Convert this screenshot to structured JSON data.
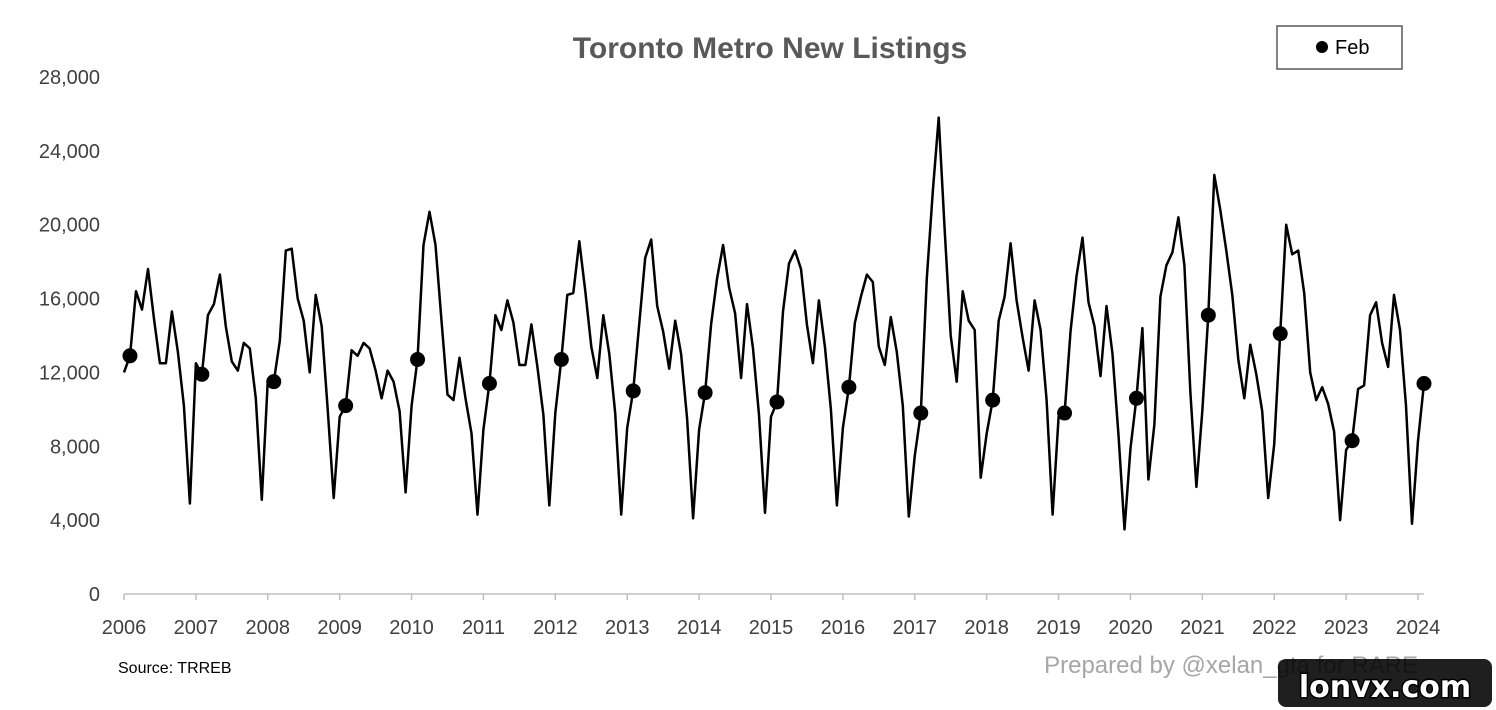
{
  "chart_data": {
    "type": "line",
    "title": "Toronto Metro New Listings",
    "xlabel": "",
    "ylabel": "",
    "ylim": [
      0,
      28000
    ],
    "yticks": [
      0,
      4000,
      8000,
      12000,
      16000,
      20000,
      24000,
      28000
    ],
    "ytick_labels": [
      "0",
      "4,000",
      "8,000",
      "12,000",
      "16,000",
      "20,000",
      "24,000",
      "28,000"
    ],
    "xlim": [
      "2006-01",
      "2024-02"
    ],
    "xtick_labels": [
      "2006",
      "2007",
      "2008",
      "2009",
      "2010",
      "2011",
      "2012",
      "2013",
      "2014",
      "2015",
      "2016",
      "2017",
      "2018",
      "2019",
      "2020",
      "2021",
      "2022",
      "2023",
      "2024"
    ],
    "grid": false,
    "legend": {
      "position": "top-right",
      "entries": [
        {
          "label": "Feb",
          "marker": "circle"
        }
      ]
    },
    "series": [
      {
        "type": "line",
        "color": "#000000",
        "start": "2006-01",
        "frequency": "monthly",
        "values": [
          12000,
          12900,
          16400,
          15400,
          17600,
          14900,
          12500,
          12500,
          15300,
          13100,
          10200,
          4900,
          12500,
          11900,
          15100,
          15700,
          17300,
          14500,
          12600,
          12100,
          13600,
          13300,
          10600,
          5100,
          11600,
          11500,
          13700,
          18600,
          18700,
          16000,
          14800,
          12000,
          16200,
          14500,
          10000,
          5200,
          9600,
          10200,
          13200,
          12900,
          13600,
          13300,
          12100,
          10600,
          12100,
          11500,
          9900,
          5500,
          10200,
          12700,
          18900,
          20700,
          18900,
          14800,
          10800,
          10500,
          12800,
          10600,
          8700,
          4300,
          8900,
          11400,
          15100,
          14300,
          15900,
          14700,
          12400,
          12400,
          14600,
          12300,
          9700,
          4800,
          9800,
          12700,
          16200,
          16300,
          19100,
          16400,
          13400,
          11700,
          15100,
          13000,
          9800,
          4300,
          9000,
          11000,
          14600,
          18200,
          19200,
          15600,
          14200,
          12200,
          14800,
          13000,
          9500,
          4100,
          8900,
          10900,
          14600,
          17100,
          18900,
          16600,
          15200,
          11700,
          15700,
          13300,
          9700,
          4400,
          9600,
          10400,
          15300,
          17900,
          18600,
          17600,
          14600,
          12500,
          15900,
          13400,
          10000,
          4800,
          9000,
          11200,
          14700,
          16100,
          17300,
          16900,
          13400,
          12400,
          15000,
          13100,
          10200,
          4200,
          7500,
          9800,
          17100,
          21800,
          25800,
          19700,
          14000,
          11500,
          16400,
          14800,
          14300,
          6300,
          8700,
          10500,
          14800,
          16100,
          19000,
          15900,
          13900,
          12100,
          15900,
          14300,
          10500,
          4300,
          9600,
          9800,
          14200,
          17200,
          19300,
          15800,
          14500,
          11800,
          15600,
          13000,
          8600,
          3500,
          7900,
          10600,
          14400,
          6200,
          9200,
          16100,
          17800,
          18500,
          20400,
          17800,
          10900,
          5800,
          9900,
          15100,
          22700,
          20800,
          18600,
          16200,
          12700,
          10600,
          13500,
          11900,
          9900,
          5200,
          8100,
          14100,
          20000,
          18400,
          18600,
          16300,
          12000,
          10500,
          11200,
          10300,
          8800,
          4000,
          7800,
          8300,
          11100,
          11300,
          15100,
          15800,
          13600,
          12300,
          16200,
          14300,
          10200,
          3800,
          8300,
          11400
        ]
      },
      {
        "name": "Feb",
        "type": "scatter",
        "color": "#000000",
        "x": [
          "2006-02",
          "2007-02",
          "2008-02",
          "2009-02",
          "2010-02",
          "2011-02",
          "2012-02",
          "2013-02",
          "2014-02",
          "2015-02",
          "2016-02",
          "2017-02",
          "2018-02",
          "2019-02",
          "2020-02",
          "2021-02",
          "2022-02",
          "2023-02",
          "2024-02"
        ],
        "values": [
          12900,
          11900,
          11500,
          10200,
          12700,
          11400,
          12700,
          11000,
          10900,
          10400,
          11200,
          9800,
          10500,
          9800,
          10600,
          15100,
          14100,
          8300,
          11400
        ]
      }
    ]
  },
  "footer": {
    "source": "Source: TRREB",
    "credit": "Prepared by @xelan_gta for RARE"
  },
  "watermark": {
    "text": "lonvx.com"
  }
}
